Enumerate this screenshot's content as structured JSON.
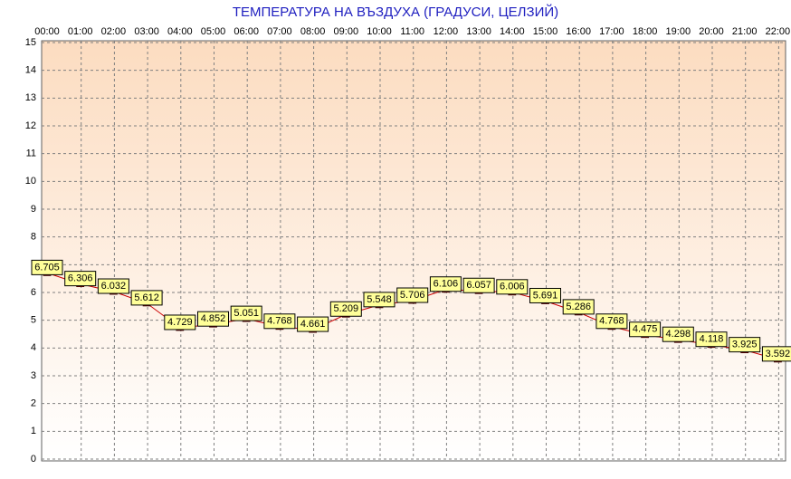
{
  "chart_data": {
    "type": "line",
    "title": "ТЕМПЕРАТУРА НА ВЪЗДУХА  (ГРАДУСИ, ЦЕЛЗИЙ)",
    "categories": [
      "00:00",
      "01:00",
      "02:00",
      "03:00",
      "04:00",
      "05:00",
      "06:00",
      "07:00",
      "08:00",
      "09:00",
      "10:00",
      "11:00",
      "12:00",
      "13:00",
      "14:00",
      "15:00",
      "16:00",
      "17:00",
      "18:00",
      "19:00",
      "20:00",
      "21:00",
      "22:00"
    ],
    "values": [
      6.705,
      6.306,
      6.032,
      5.612,
      4.729,
      4.852,
      5.051,
      4.768,
      4.661,
      5.209,
      5.548,
      5.706,
      6.106,
      6.057,
      6.006,
      5.691,
      5.286,
      4.768,
      4.475,
      4.298,
      4.118,
      3.925,
      3.592
    ],
    "color": "#cc0000",
    "ylim": [
      0,
      15
    ],
    "yticks": [
      0,
      1,
      2,
      3,
      4,
      5,
      6,
      7,
      8,
      9,
      10,
      11,
      12,
      13,
      14,
      15
    ],
    "grid": true
  }
}
